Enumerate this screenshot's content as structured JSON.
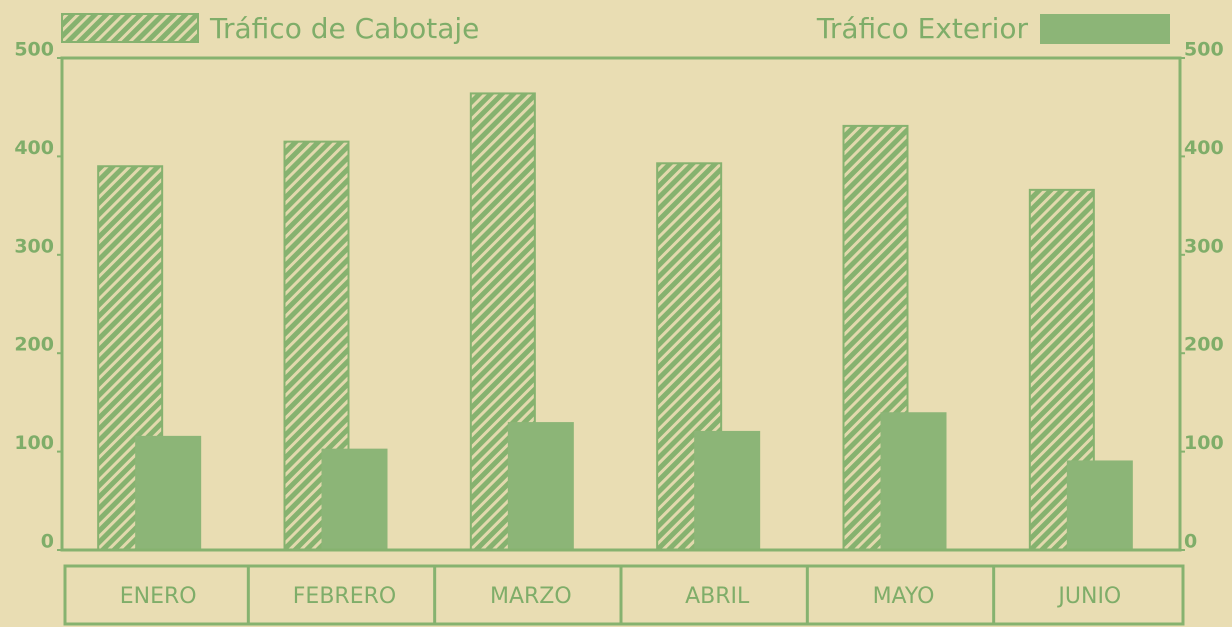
{
  "chart_data": {
    "type": "bar",
    "categories": [
      "ENERO",
      "FEBRERO",
      "MARZO",
      "ABRIL",
      "MAYO",
      "JUNIO"
    ],
    "series": [
      {
        "name": "Tráfico de Cabotaje",
        "color": "#86b26f",
        "values": [
          390,
          415,
          464,
          393,
          431,
          366
        ]
      },
      {
        "name": "Tráfico Exterior",
        "color": "#8cb577",
        "values": [
          116,
          103,
          130,
          121,
          140,
          91
        ]
      }
    ],
    "ylim": [
      0,
      500
    ],
    "yticks": [
      0,
      100,
      200,
      300,
      400,
      500
    ],
    "y2lim": [
      0,
      500
    ],
    "y2ticks": [
      0,
      100,
      200,
      300,
      400,
      500
    ]
  }
}
